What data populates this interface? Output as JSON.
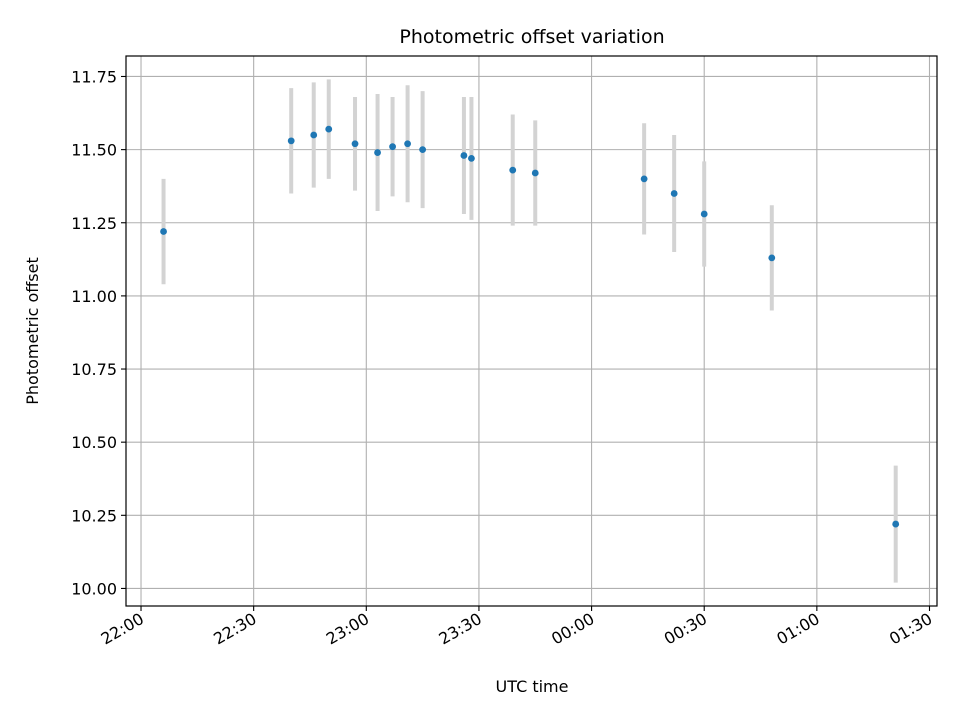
{
  "chart_data": {
    "type": "scatter",
    "title": "Photometric offset variation",
    "xlabel": "UTC time",
    "ylabel": "Photometric offset",
    "x_axis": {
      "kind": "time",
      "range": [
        "21:56",
        "01:32"
      ],
      "ticks": [
        "22:00",
        "22:30",
        "23:00",
        "23:30",
        "00:00",
        "00:30",
        "01:00",
        "01:30"
      ]
    },
    "y_axis": {
      "range": [
        9.94,
        11.82
      ],
      "ticks": [
        10.0,
        10.25,
        10.5,
        10.75,
        11.0,
        11.25,
        11.5,
        11.75
      ]
    },
    "grid": true,
    "marker_color": "#1f77b4",
    "errorbar_color": "#d3d3d3",
    "points": [
      {
        "time": "22:06",
        "y": 11.22,
        "err": 0.18
      },
      {
        "time": "22:40",
        "y": 11.53,
        "err": 0.18
      },
      {
        "time": "22:46",
        "y": 11.55,
        "err": 0.18
      },
      {
        "time": "22:50",
        "y": 11.57,
        "err": 0.17
      },
      {
        "time": "22:57",
        "y": 11.52,
        "err": 0.16
      },
      {
        "time": "23:03",
        "y": 11.49,
        "err": 0.2
      },
      {
        "time": "23:07",
        "y": 11.51,
        "err": 0.17
      },
      {
        "time": "23:11",
        "y": 11.52,
        "err": 0.2
      },
      {
        "time": "23:15",
        "y": 11.5,
        "err": 0.2
      },
      {
        "time": "23:26",
        "y": 11.48,
        "err": 0.2
      },
      {
        "time": "23:28",
        "y": 11.47,
        "err": 0.21
      },
      {
        "time": "23:39",
        "y": 11.43,
        "err": 0.19
      },
      {
        "time": "23:45",
        "y": 11.42,
        "err": 0.18
      },
      {
        "time": "00:14",
        "y": 11.4,
        "err": 0.19
      },
      {
        "time": "00:22",
        "y": 11.35,
        "err": 0.2
      },
      {
        "time": "00:30",
        "y": 11.28,
        "err": 0.18
      },
      {
        "time": "00:48",
        "y": 11.13,
        "err": 0.18
      },
      {
        "time": "01:21",
        "y": 10.22,
        "err": 0.2
      }
    ]
  }
}
